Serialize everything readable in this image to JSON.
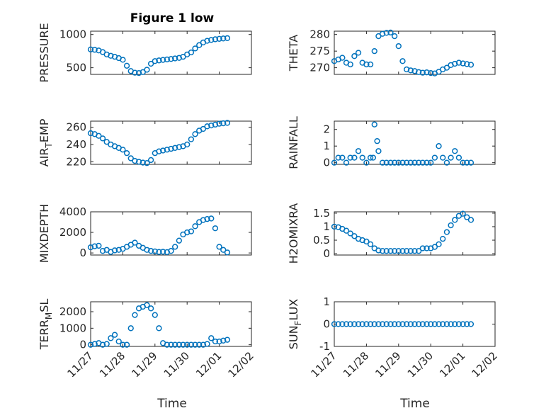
{
  "figure": {
    "title": "Figure 1 low",
    "marker_color": "#0072bd"
  },
  "chart_data": [
    {
      "type": "scatter",
      "ylabel": "PRESSURE",
      "ylim": [
        400,
        1050
      ],
      "yticks": [
        "500",
        "1000"
      ],
      "ytick_values": [
        500,
        1000
      ],
      "x": [
        "11/27 00:00",
        "11/27 03:00",
        "11/27 06:00",
        "11/27 09:00",
        "11/27 12:00",
        "11/27 15:00",
        "11/27 18:00",
        "11/27 21:00",
        "11/28 00:00",
        "11/28 03:00",
        "11/28 06:00",
        "11/28 09:00",
        "11/28 12:00",
        "11/28 15:00",
        "11/28 18:00",
        "11/28 21:00",
        "11/29 00:00",
        "11/29 03:00",
        "11/29 06:00",
        "11/29 09:00",
        "11/29 12:00",
        "11/29 15:00",
        "11/29 18:00",
        "11/29 21:00",
        "11/30 00:00",
        "11/30 03:00",
        "11/30 06:00",
        "11/30 09:00",
        "11/30 12:00",
        "11/30 15:00",
        "11/30 18:00",
        "11/30 21:00",
        "12/01 00:00",
        "12/01 03:00",
        "12/01 06:00"
      ],
      "y": [
        775,
        770,
        760,
        735,
        700,
        680,
        665,
        645,
        620,
        530,
        450,
        425,
        420,
        435,
        470,
        560,
        600,
        610,
        618,
        625,
        632,
        640,
        648,
        665,
        700,
        730,
        790,
        840,
        880,
        905,
        918,
        928,
        935,
        940,
        945
      ]
    },
    {
      "type": "scatter",
      "ylabel": "THETA",
      "ylim": [
        268,
        281
      ],
      "yticks": [
        "270",
        "275",
        "280"
      ],
      "ytick_values": [
        270,
        275,
        280
      ],
      "x": [
        "11/27 00:00",
        "11/27 03:00",
        "11/27 06:00",
        "11/27 09:00",
        "11/27 12:00",
        "11/27 15:00",
        "11/27 18:00",
        "11/27 21:00",
        "11/28 00:00",
        "11/28 03:00",
        "11/28 06:00",
        "11/28 09:00",
        "11/28 12:00",
        "11/28 15:00",
        "11/28 18:00",
        "11/28 21:00",
        "11/29 00:00",
        "11/29 03:00",
        "11/29 06:00",
        "11/29 09:00",
        "11/29 12:00",
        "11/29 15:00",
        "11/29 18:00",
        "11/29 21:00",
        "11/30 00:00",
        "11/30 03:00",
        "11/30 06:00",
        "11/30 09:00",
        "11/30 12:00",
        "11/30 15:00",
        "11/30 18:00",
        "11/30 21:00",
        "12/01 00:00",
        "12/01 03:00",
        "12/01 06:00"
      ],
      "y": [
        272,
        272.5,
        273,
        271.5,
        271,
        273.5,
        274.5,
        271.5,
        271,
        271,
        275,
        279.5,
        280.2,
        280.5,
        280.6,
        279.5,
        276.5,
        272,
        269.5,
        269.2,
        269,
        268.7,
        268.5,
        268.6,
        268.4,
        268.3,
        268.8,
        269.5,
        270,
        270.8,
        271.2,
        271.5,
        271.3,
        271.1,
        270.9
      ]
    },
    {
      "type": "scatter",
      "ylabel": "AIR_TEMP",
      "ylim": [
        217,
        267
      ],
      "yticks": [
        "220",
        "240",
        "260"
      ],
      "ytick_values": [
        220,
        240,
        260
      ],
      "x": [
        "11/27 00:00",
        "11/27 03:00",
        "11/27 06:00",
        "11/27 09:00",
        "11/27 12:00",
        "11/27 15:00",
        "11/27 18:00",
        "11/27 21:00",
        "11/28 00:00",
        "11/28 03:00",
        "11/28 06:00",
        "11/28 09:00",
        "11/28 12:00",
        "11/28 15:00",
        "11/28 18:00",
        "11/28 21:00",
        "11/29 00:00",
        "11/29 03:00",
        "11/29 06:00",
        "11/29 09:00",
        "11/29 12:00",
        "11/29 15:00",
        "11/29 18:00",
        "11/29 21:00",
        "11/30 00:00",
        "11/30 03:00",
        "11/30 06:00",
        "11/30 09:00",
        "11/30 12:00",
        "11/30 15:00",
        "11/30 18:00",
        "11/30 21:00",
        "12/01 00:00",
        "12/01 03:00",
        "12/01 06:00"
      ],
      "y": [
        253,
        252,
        250,
        247,
        243,
        240,
        238,
        236,
        234,
        230,
        224,
        221,
        220,
        219,
        218.5,
        222,
        230,
        232,
        233,
        234,
        235,
        236,
        237,
        238,
        240,
        246,
        252,
        256,
        258,
        261,
        262,
        263,
        264,
        264.5,
        265
      ]
    },
    {
      "type": "scatter",
      "ylabel": "RAINFALL",
      "ylim": [
        -0.1,
        2.5
      ],
      "yticks": [
        "0",
        "1",
        "2"
      ],
      "ytick_values": [
        0,
        1,
        2
      ],
      "x": [
        "11/27 00:00",
        "11/27 03:00",
        "11/27 06:00",
        "11/27 09:00",
        "11/27 12:00",
        "11/27 15:00",
        "11/27 18:00",
        "11/27 21:00",
        "11/28 00:00",
        "11/28 03:00",
        "11/28 05:00",
        "11/28 06:00",
        "11/28 08:00",
        "11/28 09:00",
        "11/28 12:00",
        "11/28 15:00",
        "11/28 18:00",
        "11/28 21:00",
        "11/29 00:00",
        "11/29 03:00",
        "11/29 06:00",
        "11/29 09:00",
        "11/29 12:00",
        "11/29 15:00",
        "11/29 18:00",
        "11/29 21:00",
        "11/30 00:00",
        "11/30 03:00",
        "11/30 06:00",
        "11/30 09:00",
        "11/30 12:00",
        "11/30 15:00",
        "11/30 18:00",
        "11/30 21:00",
        "12/01 00:00",
        "12/01 03:00",
        "12/01 06:00"
      ],
      "y": [
        0,
        0.3,
        0.3,
        0,
        0.3,
        0.3,
        0.7,
        0.3,
        0,
        0.3,
        0.3,
        2.3,
        1.3,
        0.7,
        0,
        0,
        0,
        0,
        0,
        0,
        0,
        0,
        0,
        0,
        0,
        0,
        0,
        0.3,
        1,
        0.3,
        0,
        0.3,
        0.7,
        0.3,
        0,
        0,
        0
      ]
    },
    {
      "type": "scatter",
      "ylabel": "MIXDEPTH",
      "ylim": [
        -200,
        4000
      ],
      "yticks": [
        "0",
        "2000",
        "4000"
      ],
      "ytick_values": [
        0,
        2000,
        4000
      ],
      "x": [
        "11/27 00:00",
        "11/27 03:00",
        "11/27 06:00",
        "11/27 09:00",
        "11/27 12:00",
        "11/27 15:00",
        "11/27 18:00",
        "11/27 21:00",
        "11/28 00:00",
        "11/28 03:00",
        "11/28 06:00",
        "11/28 09:00",
        "11/28 12:00",
        "11/28 15:00",
        "11/28 18:00",
        "11/28 21:00",
        "11/29 00:00",
        "11/29 03:00",
        "11/29 06:00",
        "11/29 09:00",
        "11/29 12:00",
        "11/29 15:00",
        "11/29 18:00",
        "11/29 21:00",
        "11/30 00:00",
        "11/30 03:00",
        "11/30 06:00",
        "11/30 09:00",
        "11/30 12:00",
        "11/30 15:00",
        "11/30 18:00",
        "11/30 21:00",
        "12/01 00:00",
        "12/01 03:00",
        "12/01 06:00"
      ],
      "y": [
        550,
        650,
        700,
        200,
        300,
        100,
        250,
        300,
        400,
        600,
        800,
        1000,
        700,
        500,
        300,
        200,
        150,
        100,
        120,
        80,
        200,
        600,
        1200,
        1800,
        2000,
        2100,
        2600,
        3000,
        3200,
        3300,
        3350,
        2400,
        600,
        300,
        50
      ]
    },
    {
      "type": "scatter",
      "ylabel": "H2OMIXRA",
      "ylim": [
        -0.05,
        1.55
      ],
      "yticks": [
        "0",
        "0.5",
        "1",
        "1.5"
      ],
      "ytick_values": [
        0,
        0.5,
        1,
        1.5
      ],
      "x": [
        "11/27 00:00",
        "11/27 03:00",
        "11/27 06:00",
        "11/27 09:00",
        "11/27 12:00",
        "11/27 15:00",
        "11/27 18:00",
        "11/27 21:00",
        "11/28 00:00",
        "11/28 03:00",
        "11/28 06:00",
        "11/28 09:00",
        "11/28 12:00",
        "11/28 15:00",
        "11/28 18:00",
        "11/28 21:00",
        "11/29 00:00",
        "11/29 03:00",
        "11/29 06:00",
        "11/29 09:00",
        "11/29 12:00",
        "11/29 15:00",
        "11/29 18:00",
        "11/29 21:00",
        "11/30 00:00",
        "11/30 03:00",
        "11/30 06:00",
        "11/30 09:00",
        "11/30 12:00",
        "11/30 15:00",
        "11/30 18:00",
        "11/30 21:00",
        "12/01 00:00",
        "12/01 03:00",
        "12/01 06:00"
      ],
      "y": [
        1,
        0.98,
        0.92,
        0.85,
        0.75,
        0.65,
        0.55,
        0.5,
        0.45,
        0.35,
        0.2,
        0.12,
        0.1,
        0.1,
        0.1,
        0.1,
        0.1,
        0.1,
        0.1,
        0.1,
        0.1,
        0.1,
        0.2,
        0.2,
        0.2,
        0.25,
        0.35,
        0.55,
        0.8,
        1.05,
        1.25,
        1.4,
        1.48,
        1.35,
        1.25
      ]
    },
    {
      "type": "scatter",
      "ylabel": "TERR_MSL",
      "ylim": [
        -100,
        2600
      ],
      "yticks": [
        "0",
        "1000",
        "2000"
      ],
      "ytick_values": [
        0,
        1000,
        2000
      ],
      "x": [
        "11/27 00:00",
        "11/27 03:00",
        "11/27 06:00",
        "11/27 09:00",
        "11/27 12:00",
        "11/27 15:00",
        "11/27 18:00",
        "11/27 21:00",
        "11/28 00:00",
        "11/28 03:00",
        "11/28 06:00",
        "11/28 09:00",
        "11/28 12:00",
        "11/28 15:00",
        "11/28 18:00",
        "11/28 21:00",
        "11/29 00:00",
        "11/29 03:00",
        "11/29 06:00",
        "11/29 09:00",
        "11/29 12:00",
        "11/29 15:00",
        "11/29 18:00",
        "11/29 21:00",
        "11/30 00:00",
        "11/30 03:00",
        "11/30 06:00",
        "11/30 09:00",
        "11/30 12:00",
        "11/30 15:00",
        "11/30 18:00",
        "11/30 21:00",
        "12/01 00:00",
        "12/01 03:00",
        "12/01 06:00"
      ],
      "y": [
        0,
        50,
        100,
        0,
        50,
        400,
        600,
        200,
        0,
        0,
        1000,
        1800,
        2200,
        2300,
        2400,
        2200,
        1800,
        1000,
        100,
        0,
        0,
        0,
        0,
        0,
        0,
        0,
        0,
        0,
        0,
        50,
        400,
        200,
        200,
        250,
        300
      ]
    },
    {
      "type": "scatter",
      "ylabel": "SUN_FLUX",
      "ylim": [
        -1,
        1
      ],
      "yticks": [
        "-1",
        "0",
        "1"
      ],
      "ytick_values": [
        -1,
        0,
        1
      ],
      "x": [
        "11/27 00:00",
        "11/27 03:00",
        "11/27 06:00",
        "11/27 09:00",
        "11/27 12:00",
        "11/27 15:00",
        "11/27 18:00",
        "11/27 21:00",
        "11/28 00:00",
        "11/28 03:00",
        "11/28 06:00",
        "11/28 09:00",
        "11/28 12:00",
        "11/28 15:00",
        "11/28 18:00",
        "11/28 21:00",
        "11/29 00:00",
        "11/29 03:00",
        "11/29 06:00",
        "11/29 09:00",
        "11/29 12:00",
        "11/29 15:00",
        "11/29 18:00",
        "11/29 21:00",
        "11/30 00:00",
        "11/30 03:00",
        "11/30 06:00",
        "11/30 09:00",
        "11/30 12:00",
        "11/30 15:00",
        "11/30 18:00",
        "11/30 21:00",
        "12/01 00:00",
        "12/01 03:00",
        "12/01 06:00"
      ],
      "y": [
        0,
        0,
        0,
        0,
        0,
        0,
        0,
        0,
        0,
        0,
        0,
        0,
        0,
        0,
        0,
        0,
        0,
        0,
        0,
        0,
        0,
        0,
        0,
        0,
        0,
        0,
        0,
        0,
        0,
        0,
        0,
        0,
        0,
        0,
        0
      ]
    }
  ],
  "xaxis": {
    "xlabel": "Time",
    "xticks": [
      "11/27",
      "11/28",
      "11/29",
      "11/30",
      "12/01",
      "12/02"
    ],
    "grid": true
  }
}
